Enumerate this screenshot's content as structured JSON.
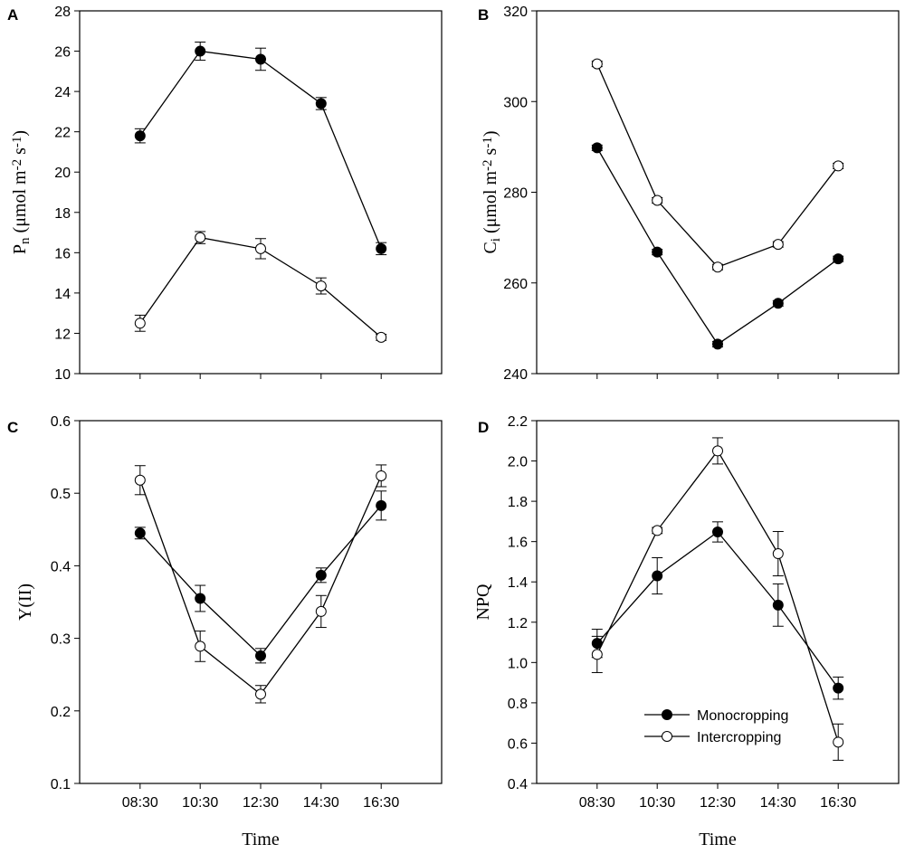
{
  "chart_data": [
    {
      "panel": "A",
      "type": "line",
      "categories": [
        "08:30",
        "10:30",
        "12:30",
        "14:30",
        "16:30"
      ],
      "ylim": [
        10,
        28
      ],
      "yticks": [
        10,
        12,
        14,
        16,
        18,
        20,
        22,
        24,
        26,
        28
      ],
      "ylabel": {
        "main": "P",
        "sub": "n",
        "unit": " (μmol m",
        "sup1": "-2",
        "mid": " s",
        "sup2": "-1",
        "end": ")"
      },
      "xlabel": "",
      "show_x_tick_labels": false,
      "series": [
        {
          "name": "Monocropping",
          "values": [
            21.8,
            26.0,
            25.6,
            23.4,
            16.2
          ],
          "errors": [
            0.35,
            0.45,
            0.55,
            0.3,
            0.3
          ]
        },
        {
          "name": "Intercropping",
          "values": [
            12.5,
            16.75,
            16.2,
            14.35,
            11.8
          ],
          "errors": [
            0.4,
            0.3,
            0.5,
            0.4,
            0.15
          ]
        }
      ]
    },
    {
      "panel": "B",
      "type": "line",
      "categories": [
        "08:30",
        "10:30",
        "12:30",
        "14:30",
        "16:30"
      ],
      "ylim": [
        240,
        320
      ],
      "yticks": [
        240,
        260,
        280,
        300,
        320
      ],
      "ylabel": {
        "main": "C",
        "sub": "i",
        "unit": " (μmol m",
        "sup1": "-2",
        "mid": " s",
        "sup2": "-1",
        "end": ")"
      },
      "xlabel": "",
      "show_x_tick_labels": false,
      "series": [
        {
          "name": "Monocropping",
          "values": [
            289.8,
            266.8,
            246.5,
            255.5,
            265.3
          ],
          "errors": [
            0.6,
            0.6,
            0.6,
            0.6,
            0.6
          ]
        },
        {
          "name": "Intercropping",
          "values": [
            308.3,
            278.2,
            263.5,
            268.5,
            285.8
          ],
          "errors": [
            0.6,
            0.6,
            0.6,
            0.6,
            0.6
          ]
        }
      ]
    },
    {
      "panel": "C",
      "type": "line",
      "categories": [
        "08:30",
        "10:30",
        "12:30",
        "14:30",
        "16:30"
      ],
      "ylim": [
        0.1,
        0.6
      ],
      "yticks": [
        0.1,
        0.2,
        0.3,
        0.4,
        0.5,
        0.6
      ],
      "ylabel": {
        "main": "Y(II)"
      },
      "xlabel": "Time",
      "show_x_tick_labels": true,
      "series": [
        {
          "name": "Monocropping",
          "values": [
            0.445,
            0.355,
            0.276,
            0.387,
            0.483
          ],
          "errors": [
            0.008,
            0.018,
            0.01,
            0.01,
            0.02
          ]
        },
        {
          "name": "Intercropping",
          "values": [
            0.518,
            0.289,
            0.223,
            0.337,
            0.524
          ],
          "errors": [
            0.02,
            0.021,
            0.012,
            0.022,
            0.015
          ]
        }
      ]
    },
    {
      "panel": "D",
      "type": "line",
      "categories": [
        "08:30",
        "10:30",
        "12:30",
        "14:30",
        "16:30"
      ],
      "ylim": [
        0.4,
        2.2
      ],
      "yticks": [
        0.4,
        0.6,
        0.8,
        1.0,
        1.2,
        1.4,
        1.6,
        1.8,
        2.0,
        2.2
      ],
      "ylabel": {
        "main": "NPQ"
      },
      "xlabel": "Time",
      "show_x_tick_labels": true,
      "legend": {
        "placement": "bottom-right"
      },
      "series": [
        {
          "name": "Monocropping",
          "values": [
            1.095,
            1.43,
            1.648,
            1.285,
            0.873
          ],
          "errors": [
            0.07,
            0.09,
            0.05,
            0.105,
            0.055
          ]
        },
        {
          "name": "Intercropping",
          "values": [
            1.04,
            1.655,
            2.05,
            1.54,
            0.605
          ],
          "errors": [
            0.09,
            0.015,
            0.065,
            0.11,
            0.09
          ]
        }
      ]
    }
  ]
}
